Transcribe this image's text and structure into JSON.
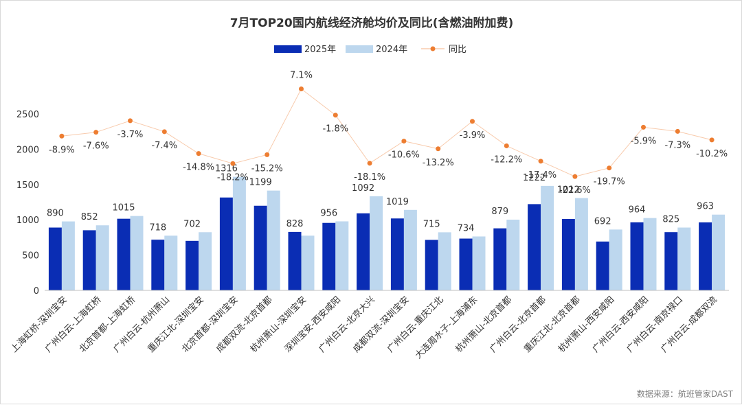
{
  "chart_data": {
    "type": "bar",
    "title": "7月TOP20国内航线经济舱均价及同比(含燃油附加费)",
    "source": "数据来源：航班管家DAST",
    "categories": [
      "上海虹桥-深圳宝安",
      "广州白云-上海虹桥",
      "北京首都-上海虹桥",
      "广州白云-杭州萧山",
      "重庆江北-深圳宝安",
      "北京首都-深圳宝安",
      "成都双流-北京首都",
      "杭州萧山-深圳宝安",
      "深圳宝安-西安咸阳",
      "广州白云-北京大兴",
      "成都双流-深圳宝安",
      "广州白云-重庆江北",
      "大连周水子-上海浦东",
      "杭州萧山-北京首都",
      "广州白云-北京首都",
      "重庆江北-北京首都",
      "杭州萧山-西安咸阳",
      "广州白云-西安咸阳",
      "广州白云-南京禄口",
      "广州白云-成都双流"
    ],
    "series": [
      {
        "name": "2025年",
        "type": "bar",
        "color": "#0a2db4",
        "values": [
          890,
          852,
          1015,
          718,
          702,
          1316,
          1199,
          828,
          956,
          1092,
          1019,
          715,
          734,
          879,
          1222,
          1012,
          692,
          964,
          825,
          963
        ],
        "labels": [
          "890",
          "852",
          "1015",
          "718",
          "702",
          "1316",
          "1199",
          "828",
          "956",
          "1092",
          "1019",
          "715",
          "734",
          "879",
          "1222",
          "1012",
          "692",
          "964",
          "825",
          "963"
        ]
      },
      {
        "name": "2024年",
        "type": "bar",
        "color": "#bdd7ee",
        "values": [
          977,
          922,
          1054,
          775,
          824,
          1609,
          1414,
          775,
          978,
          1334,
          1140,
          823,
          764,
          1002,
          1480,
          1308,
          862,
          1025,
          890,
          1073
        ]
      },
      {
        "name": "同比",
        "type": "line-markers",
        "color": "#ed7d31",
        "unit": "%",
        "values": [
          -8.9,
          -7.6,
          -3.7,
          -7.4,
          -14.8,
          -18.2,
          -15.2,
          7.1,
          -1.8,
          -18.1,
          -10.6,
          -13.2,
          -3.9,
          -12.2,
          -17.4,
          -22.6,
          -19.7,
          -5.9,
          -7.3,
          -10.2
        ],
        "labels": [
          "-8.9%",
          "-7.6%",
          "-3.7%",
          "-7.4%",
          "-14.8%",
          "-18.2%",
          "-15.2%",
          "7.1%",
          "-1.8%",
          "-18.1%",
          "-10.6%",
          "-13.2%",
          "-3.9%",
          "-12.2%",
          "-17.4%",
          "-22.6%",
          "-19.7%",
          "-5.9%",
          "-7.3%",
          "-10.2%"
        ]
      }
    ],
    "y_axis": {
      "min": 0,
      "max": 2500,
      "ticks": [
        "0",
        "500",
        "1000",
        "1500",
        "2000",
        "2500"
      ]
    },
    "legend": {
      "position": "top",
      "items": [
        "2025年",
        "2024年",
        "同比"
      ]
    },
    "grid": false
  }
}
